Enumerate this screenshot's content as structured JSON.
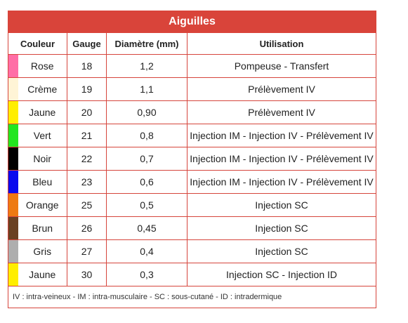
{
  "table": {
    "title": "Aiguilles",
    "headers": {
      "couleur": "Couleur",
      "gauge": "Gauge",
      "diametre": "Diamètre (mm)",
      "utilisation": "Utilisation"
    },
    "rows": [
      {
        "swatch": "#ff6ea6",
        "couleur": "Rose",
        "gauge": "18",
        "diametre": "1,2",
        "utilisation": "Pompeuse - Transfert"
      },
      {
        "swatch": "#fff4d6",
        "couleur": "Crème",
        "gauge": "19",
        "diametre": "1,1",
        "utilisation": "Prélèvement IV"
      },
      {
        "swatch": "#ffee00",
        "couleur": "Jaune",
        "gauge": "20",
        "diametre": "0,90",
        "utilisation": "Prélèvement IV"
      },
      {
        "swatch": "#22e620",
        "couleur": "Vert",
        "gauge": "21",
        "diametre": "0,8",
        "utilisation": "Injection IM - Injection IV - Prélèvement IV"
      },
      {
        "swatch": "#000000",
        "couleur": "Noir",
        "gauge": "22",
        "diametre": "0,7",
        "utilisation": "Injection IM - Injection IV - Prélèvement IV"
      },
      {
        "swatch": "#0a0aee",
        "couleur": "Bleu",
        "gauge": "23",
        "diametre": "0,6",
        "utilisation": "Injection IM - Injection IV - Prélèvement IV"
      },
      {
        "swatch": "#ee7a12",
        "couleur": "Orange",
        "gauge": "25",
        "diametre": "0,5",
        "utilisation": "Injection SC"
      },
      {
        "swatch": "#6a4122",
        "couleur": "Brun",
        "gauge": "26",
        "diametre": "0,45",
        "utilisation": "Injection SC"
      },
      {
        "swatch": "#aeaeae",
        "couleur": "Gris",
        "gauge": "27",
        "diametre": "0,4",
        "utilisation": "Injection SC"
      },
      {
        "swatch": "#ffee00",
        "couleur": "Jaune",
        "gauge": "30",
        "diametre": "0,3",
        "utilisation": "Injection SC - Injection ID"
      }
    ],
    "footnote": "IV : intra-veineux - IM : intra-musculaire - SC : sous-cutané - ID : intradermique"
  }
}
